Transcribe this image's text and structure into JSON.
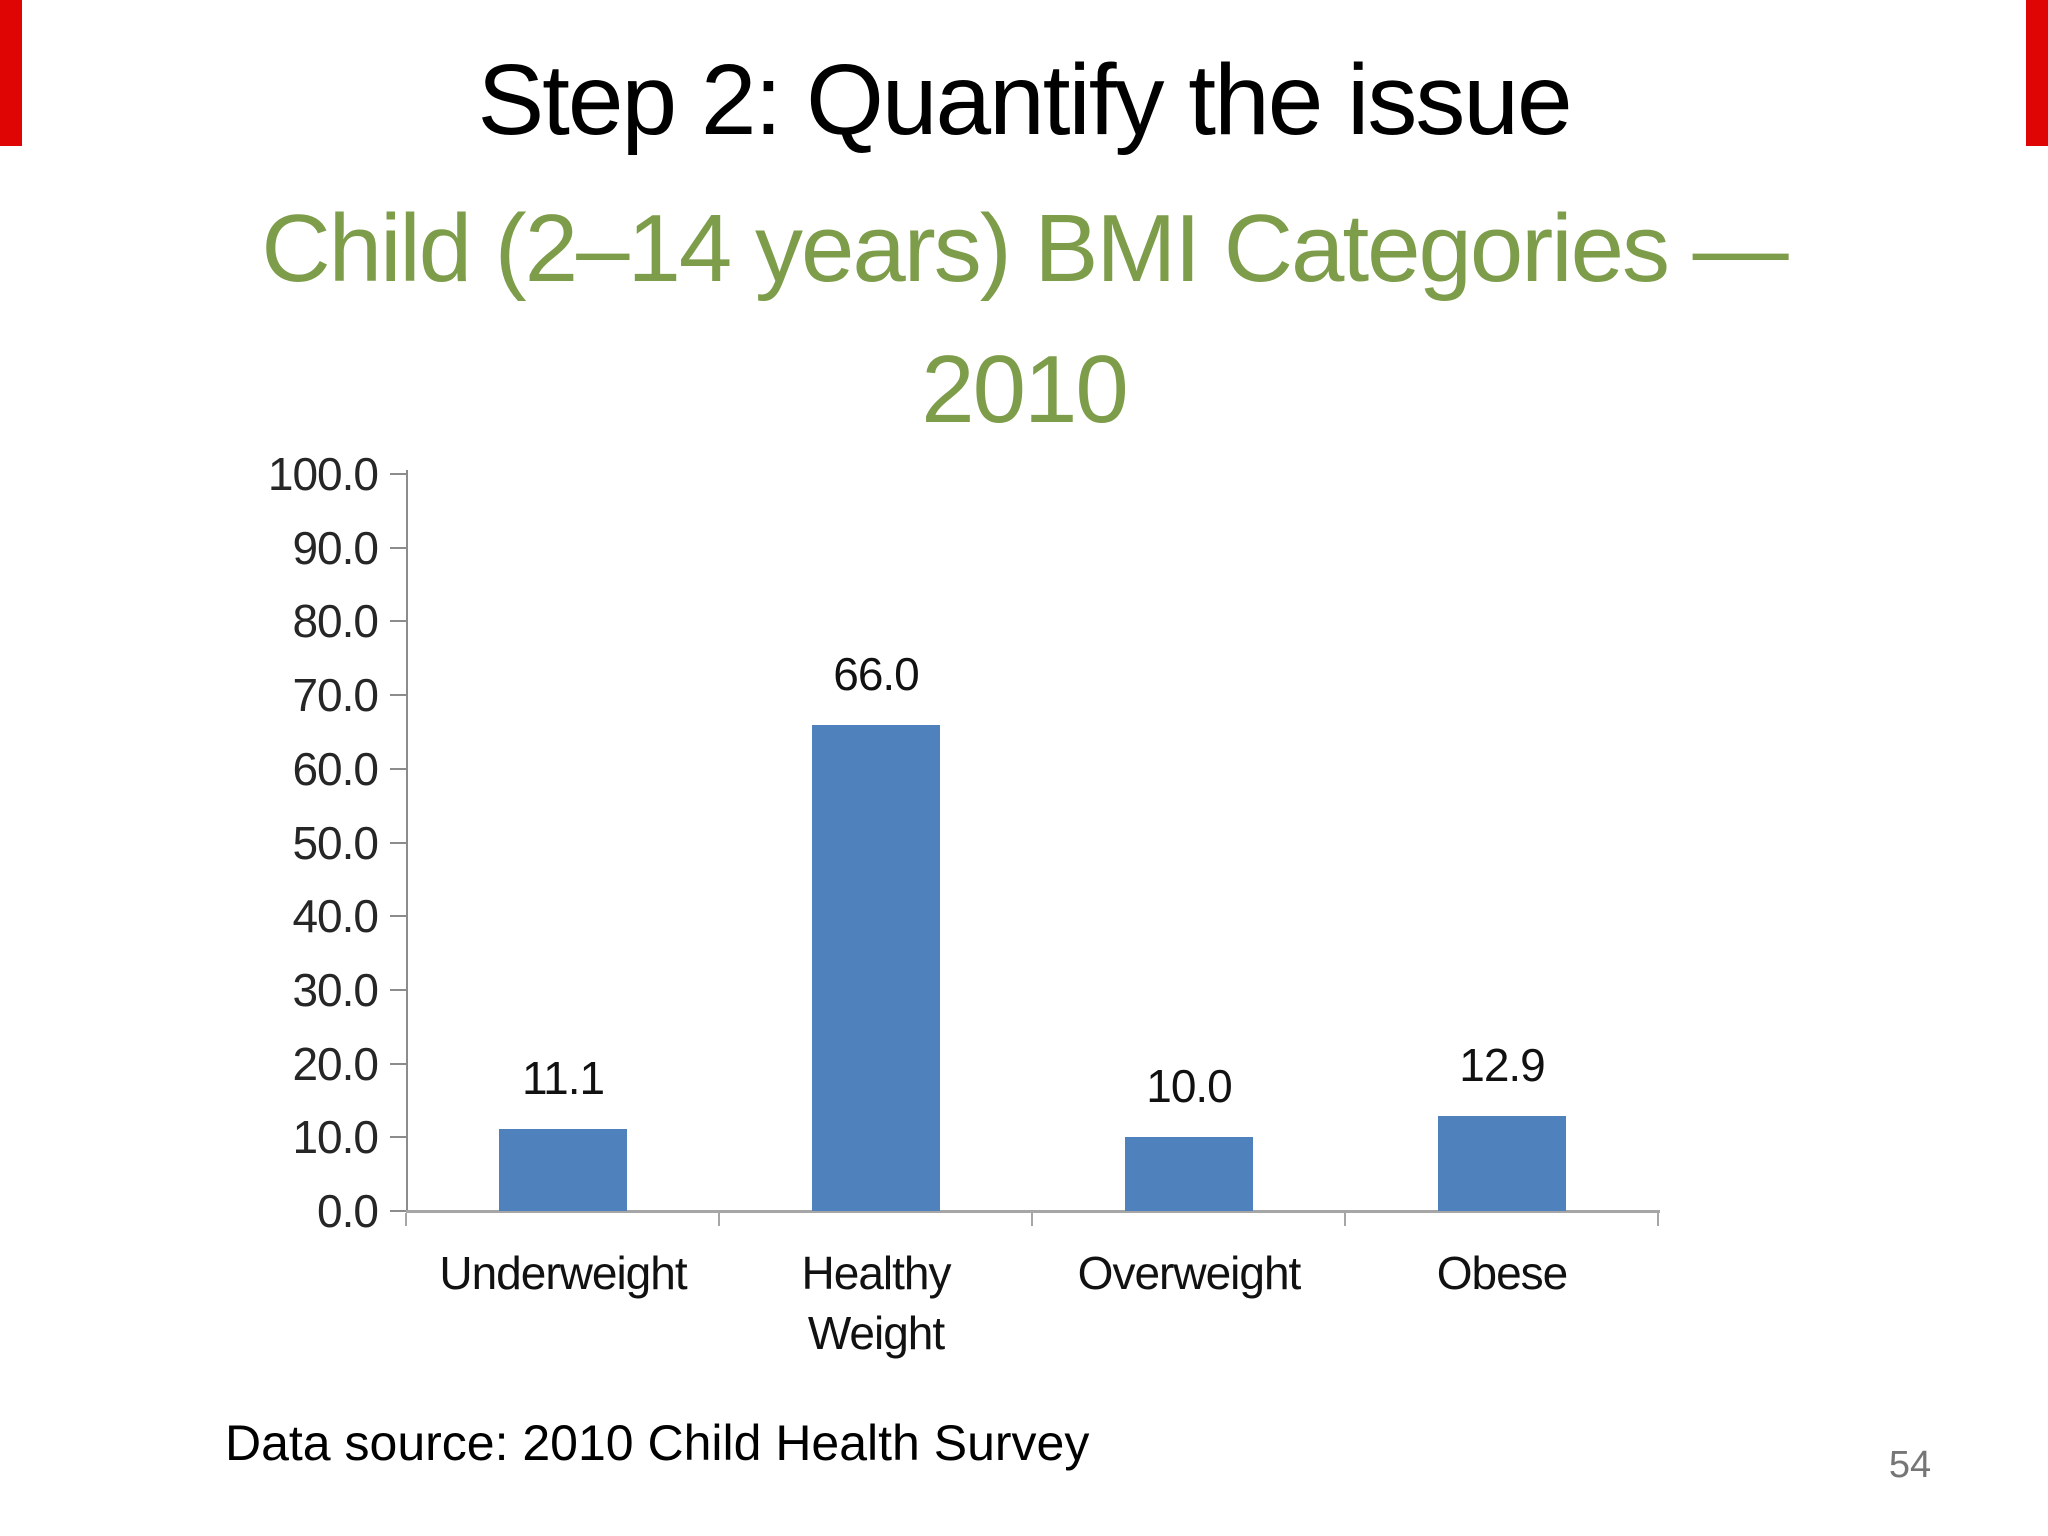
{
  "slide": {
    "title": "Step 2: Quantify the issue",
    "subtitle_line1": "Child (2–14 years) BMI Categories —",
    "subtitle_line2": "2010",
    "footer": "Data source: 2010 Child Health Survey",
    "page_number": "54",
    "accent_green": "#7e9d4a",
    "ribbon_color": "#e00505"
  },
  "chart_data": {
    "type": "bar",
    "title": "",
    "xlabel": "",
    "ylabel": "",
    "categories": [
      "Underweight",
      "Healthy Weight",
      "Overweight",
      "Obese"
    ],
    "values": [
      11.1,
      66.0,
      10.0,
      12.9
    ],
    "value_labels": [
      "11.1",
      "66.0",
      "10.0",
      "12.9"
    ],
    "ytick_labels": [
      "100.0",
      "90.0",
      "80.0",
      "70.0",
      "60.0",
      "50.0",
      "40.0",
      "30.0",
      "20.0",
      "10.0",
      "0.0"
    ],
    "ylim": [
      0,
      100
    ],
    "bar_color": "#4f81bd",
    "grid": false,
    "legend": false
  }
}
